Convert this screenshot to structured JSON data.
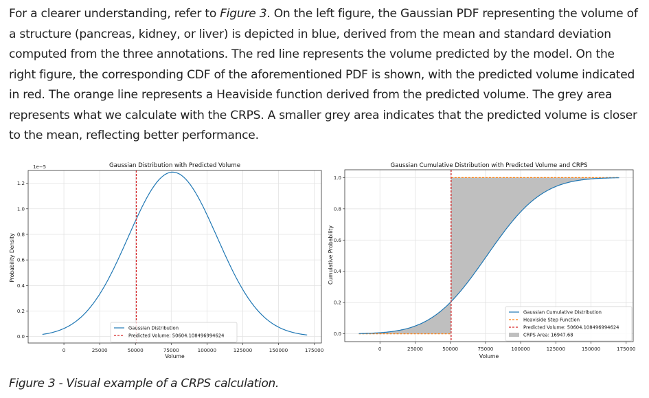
{
  "paragraph": {
    "part1": "For a clearer understanding, refer to ",
    "fig_ref": "Figure 3",
    "part2": ". On the left figure, the Gaussian PDF representing the volume of a structure (pancreas, kidney, or liver) is depicted in blue, derived from the mean and standard deviation computed from the three annotations. The red line represents the volume predicted by the model. On the right figure, the corresponding CDF of the aforementioned PDF is shown, with the predicted volume indicated in red. The orange line represents a Heaviside function derived from the predicted volume. The grey area represents what we calculate with the CRPS. A smaller grey area indicates that the predicted volume is closer to the mean, reflecting better performance."
  },
  "caption": "Figure 3 - Visual example of a CRPS calculation.",
  "colors": {
    "blue": "#1f77b4",
    "red": "#d62728",
    "orange": "#ff7f0e",
    "grey": "#bfbfbf"
  },
  "chart_data": [
    {
      "type": "line",
      "title": "Gaussian Distribution with Predicted Volume",
      "xlabel": "Volume",
      "ylabel": "Probability Density",
      "offset_label": "1e−5",
      "xlim": [
        -25000,
        180000
      ],
      "ylim": [
        -0.05,
        1.3
      ],
      "xticks": [
        0,
        25000,
        50000,
        75000,
        100000,
        125000,
        150000,
        175000
      ],
      "yticks": [
        0.0,
        0.2,
        0.4,
        0.6,
        0.8,
        1.0,
        1.2
      ],
      "ytick_labels": [
        "0.0",
        "0.2",
        "0.4",
        "0.6",
        "0.8",
        "1.0",
        "1.2"
      ],
      "grid": true,
      "gaussian": {
        "mean": 76000,
        "std": 31000,
        "x_range": [
          -15000,
          170000
        ]
      },
      "predicted_volume": 50604.108496994624,
      "series": [
        {
          "name": "Gaussian Distribution",
          "style": "solid",
          "color": "#1f77b4"
        },
        {
          "name": "Predicted Volume: 50604.108496994624",
          "style": "dashed",
          "color": "#d62728"
        }
      ],
      "legend": "lower-center"
    },
    {
      "type": "area",
      "title": "Gaussian Cumulative Distribution with Predicted Volume and CRPS",
      "xlabel": "Volume",
      "ylabel": "Cumulative Probability",
      "xlim": [
        -25000,
        180000
      ],
      "ylim": [
        -0.05,
        1.05
      ],
      "xticks": [
        0,
        25000,
        50000,
        75000,
        100000,
        125000,
        150000,
        175000
      ],
      "yticks": [
        0.0,
        0.2,
        0.4,
        0.6,
        0.8,
        1.0
      ],
      "ytick_labels": [
        "0.0",
        "0.2",
        "0.4",
        "0.6",
        "0.8",
        "1.0"
      ],
      "grid": true,
      "gaussian": {
        "mean": 76000,
        "std": 31000,
        "x_range": [
          -15000,
          170000
        ]
      },
      "predicted_volume": 50604.108496994624,
      "series": [
        {
          "name": "Gaussian Cumulative Distribution",
          "style": "solid",
          "color": "#1f77b4"
        },
        {
          "name": "Heaviside Step Function",
          "style": "dashed",
          "color": "#ff7f0e"
        },
        {
          "name": "Predicted Volume: 50604.108496994624",
          "style": "dashed",
          "color": "#d62728"
        },
        {
          "name": "CRPS Area: 16947.68",
          "style": "patch",
          "color": "#bfbfbf"
        }
      ],
      "crps_area": 16947.68,
      "legend": "lower-right"
    }
  ]
}
